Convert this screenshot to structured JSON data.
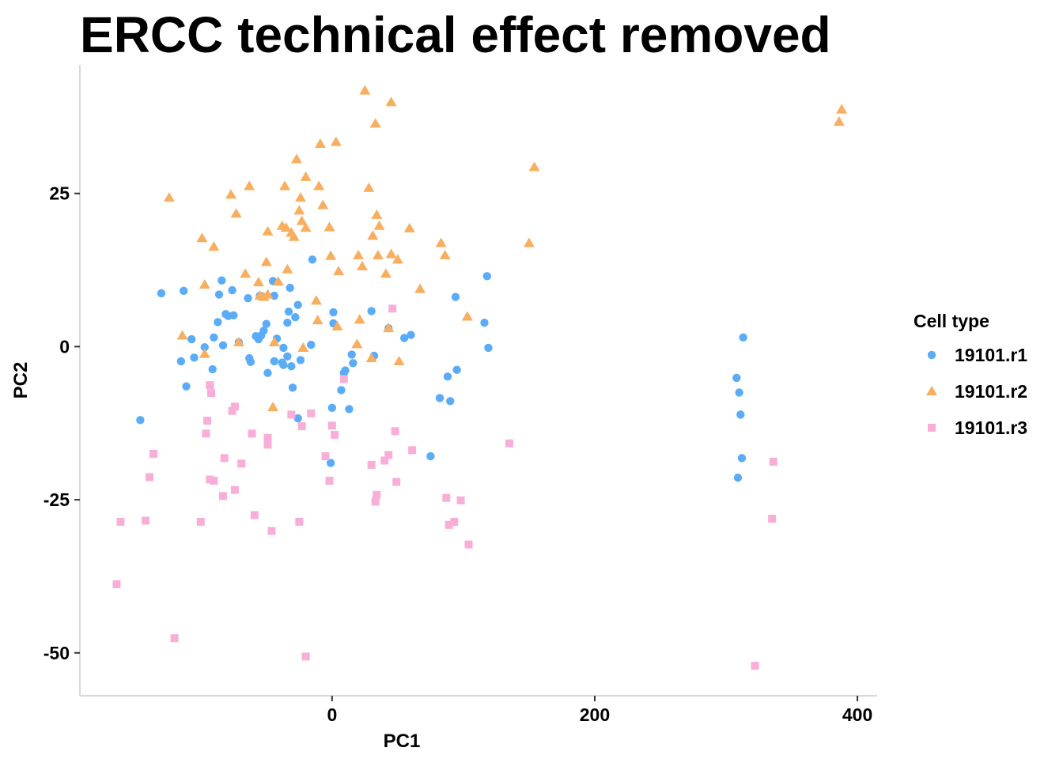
{
  "chart_data": {
    "type": "scatter",
    "title": "ERCC technical effect removed",
    "xlabel": "PC1",
    "ylabel": "PC2",
    "xlim": [
      -192,
      415
    ],
    "ylim": [
      -57,
      46
    ],
    "xticks": [
      0,
      200,
      400
    ],
    "yticks": [
      -50,
      -25,
      0,
      25
    ],
    "xtick_labels": [
      "0",
      "200",
      "400"
    ],
    "ytick_labels": [
      "-50",
      "-25",
      "0",
      "25"
    ],
    "grid": false,
    "legend": {
      "title": "Cell type",
      "position": "right"
    },
    "series": [
      {
        "name": "19101.r1",
        "color": "#5aacf8",
        "marker": "circle",
        "points": [
          [
            -146,
            -12
          ],
          [
            -130,
            8.7
          ],
          [
            -113,
            9.1
          ],
          [
            -115,
            -2.4
          ],
          [
            -111,
            -6.5
          ],
          [
            -107,
            1.2
          ],
          [
            -105,
            -1.8
          ],
          [
            -97,
            -0.1
          ],
          [
            -91,
            -3.7
          ],
          [
            -90,
            1.5
          ],
          [
            -87,
            4.0
          ],
          [
            -86,
            8.5
          ],
          [
            -84,
            10.8
          ],
          [
            -83,
            0.2
          ],
          [
            -81,
            5.3
          ],
          [
            -79,
            5.0
          ],
          [
            -76,
            9.2
          ],
          [
            -75,
            5.1
          ],
          [
            -71,
            0.7
          ],
          [
            -64,
            7.9
          ],
          [
            -63,
            -1.9
          ],
          [
            -62,
            -2.5
          ],
          [
            -58,
            1.7
          ],
          [
            -56,
            1.2
          ],
          [
            -55,
            8.3
          ],
          [
            -54,
            1.8
          ],
          [
            -52,
            2.6
          ],
          [
            -50,
            3.7
          ],
          [
            -49,
            -4.3
          ],
          [
            -45,
            10.7
          ],
          [
            -44,
            8.3
          ],
          [
            -44,
            -2.4
          ],
          [
            -42,
            1.3
          ],
          [
            -38,
            -2.6
          ],
          [
            -37,
            -0.2
          ],
          [
            -37,
            -3.0
          ],
          [
            -34,
            -1.6
          ],
          [
            -34,
            3.9
          ],
          [
            -33,
            5.7
          ],
          [
            -32,
            9.6
          ],
          [
            -31,
            -3.2
          ],
          [
            -30,
            -6.7
          ],
          [
            -28,
            4.8
          ],
          [
            -26,
            6.8
          ],
          [
            -24,
            -2.2
          ],
          [
            -26,
            -11.7
          ],
          [
            -16,
            0.3
          ],
          [
            -15,
            14.2
          ],
          [
            -1,
            -19
          ],
          [
            0,
            -10
          ],
          [
            1,
            5.6
          ],
          [
            1,
            3.8
          ],
          [
            7,
            -7.1
          ],
          [
            9,
            -4.3
          ],
          [
            10,
            -3.9
          ],
          [
            13,
            -10.2
          ],
          [
            15,
            -1.3
          ],
          [
            16,
            -2.7
          ],
          [
            30,
            5.8
          ],
          [
            32,
            -1.5
          ],
          [
            43,
            3.0
          ],
          [
            55,
            1.4
          ],
          [
            60,
            1.9
          ],
          [
            75,
            -17.9
          ],
          [
            82,
            -8.4
          ],
          [
            88,
            -4.9
          ],
          [
            90,
            -8.9
          ],
          [
            94,
            8.1
          ],
          [
            95,
            -3.8
          ],
          [
            116,
            3.9
          ],
          [
            118,
            11.5
          ],
          [
            119,
            -0.2
          ],
          [
            308,
            -5.1
          ],
          [
            309,
            -21.4
          ],
          [
            310,
            -7.5
          ],
          [
            311,
            -11.1
          ],
          [
            312,
            -18.2
          ],
          [
            313,
            1.5
          ]
        ]
      },
      {
        "name": "19101.r2",
        "color": "#f8ae5e",
        "marker": "triangle",
        "points": [
          [
            -124,
            24.3
          ],
          [
            -114,
            1.8
          ],
          [
            -99,
            17.7
          ],
          [
            -97,
            10.1
          ],
          [
            -97,
            -1.2
          ],
          [
            -90,
            16.3
          ],
          [
            -77,
            24.8
          ],
          [
            -73,
            21.7
          ],
          [
            -71,
            0.7
          ],
          [
            -66,
            11.9
          ],
          [
            -63,
            26.2
          ],
          [
            -56,
            10.5
          ],
          [
            -55,
            8.3
          ],
          [
            -52,
            8.1
          ],
          [
            -50,
            13.8
          ],
          [
            -49,
            18.8
          ],
          [
            -49,
            8.5
          ],
          [
            -45,
            -9.9
          ],
          [
            -44,
            0.7
          ],
          [
            -41,
            10.6
          ],
          [
            -38,
            19.7
          ],
          [
            -36,
            26.2
          ],
          [
            -35,
            19.4
          ],
          [
            -34,
            12.6
          ],
          [
            -31,
            18.6
          ],
          [
            -29,
            17.9
          ],
          [
            -27,
            30.6
          ],
          [
            -25,
            22.2
          ],
          [
            -24,
            24.3
          ],
          [
            -23,
            20.5
          ],
          [
            -22,
            -0.2
          ],
          [
            -20,
            27.7
          ],
          [
            -20,
            19.4
          ],
          [
            -12,
            7.5
          ],
          [
            -11,
            4.3
          ],
          [
            -10,
            26.2
          ],
          [
            -9,
            33.1
          ],
          [
            -7,
            23.1
          ],
          [
            -2,
            19.5
          ],
          [
            -1,
            14.8
          ],
          [
            3,
            33.4
          ],
          [
            4,
            3.3
          ],
          [
            5,
            12.3
          ],
          [
            19,
            0.4
          ],
          [
            20,
            14.9
          ],
          [
            21,
            4.4
          ],
          [
            23,
            13.1
          ],
          [
            25,
            41.8
          ],
          [
            28,
            25.9
          ],
          [
            30,
            -1.9
          ],
          [
            31,
            18.1
          ],
          [
            33,
            36.4
          ],
          [
            34,
            21.5
          ],
          [
            35,
            14.9
          ],
          [
            36,
            19.7
          ],
          [
            41,
            11.9
          ],
          [
            43,
            3.0
          ],
          [
            45,
            39.9
          ],
          [
            45,
            15.1
          ],
          [
            50,
            14.2
          ],
          [
            51,
            -2.4
          ],
          [
            59,
            19.3
          ],
          [
            67,
            9.4
          ],
          [
            83,
            16.9
          ],
          [
            86,
            14.9
          ],
          [
            103,
            4.9
          ],
          [
            150,
            16.9
          ],
          [
            154,
            29.3
          ],
          [
            386,
            36.7
          ],
          [
            388,
            38.7
          ]
        ]
      },
      {
        "name": "19101.r3",
        "color": "#f8aed8",
        "marker": "square",
        "points": [
          [
            -164,
            -38.8
          ],
          [
            -161,
            -28.6
          ],
          [
            -142,
            -28.4
          ],
          [
            -139,
            -21.3
          ],
          [
            -136,
            -17.5
          ],
          [
            -120,
            -47.6
          ],
          [
            -100,
            -28.6
          ],
          [
            -96,
            -14.2
          ],
          [
            -95,
            -12.1
          ],
          [
            -93,
            -21.7
          ],
          [
            -93,
            -6.3
          ],
          [
            -92,
            -7.6
          ],
          [
            -90,
            -21.9
          ],
          [
            -83,
            -24.4
          ],
          [
            -82,
            -18.2
          ],
          [
            -76,
            -10.5
          ],
          [
            -74,
            -9.8
          ],
          [
            -74,
            -23.4
          ],
          [
            -69,
            -19.1
          ],
          [
            -61,
            -14.2
          ],
          [
            -59,
            -27.5
          ],
          [
            -49,
            -14.9
          ],
          [
            -49,
            -16.0
          ],
          [
            -46,
            -30.1
          ],
          [
            -31,
            -11.1
          ],
          [
            -25,
            -28.6
          ],
          [
            -23,
            -13.0
          ],
          [
            -20,
            -50.6
          ],
          [
            -16,
            -10.9
          ],
          [
            -5,
            -17.9
          ],
          [
            -2,
            -21.9
          ],
          [
            0,
            -12.9
          ],
          [
            2,
            -14.4
          ],
          [
            9,
            -5.3
          ],
          [
            30,
            -19.3
          ],
          [
            33,
            -25.3
          ],
          [
            34,
            -24.2
          ],
          [
            40,
            -18.6
          ],
          [
            43,
            -17.7
          ],
          [
            46,
            6.2
          ],
          [
            48,
            -13.8
          ],
          [
            49,
            -22.1
          ],
          [
            61,
            -16.9
          ],
          [
            87,
            -24.7
          ],
          [
            89,
            -29.1
          ],
          [
            93,
            -28.6
          ],
          [
            98,
            -25.1
          ],
          [
            104,
            -32.3
          ],
          [
            135,
            -15.8
          ],
          [
            322,
            -52.1
          ],
          [
            335,
            -28.1
          ],
          [
            336,
            -18.8
          ]
        ]
      }
    ]
  }
}
